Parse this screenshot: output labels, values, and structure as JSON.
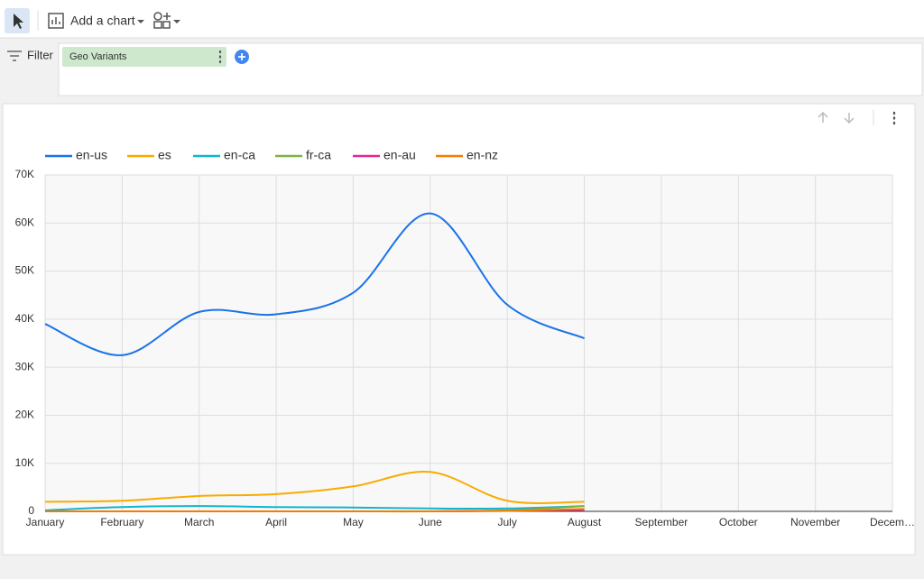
{
  "toolbar": {
    "add_chart": "Add a chart"
  },
  "filter_bar": {
    "label": "Filter",
    "chip": "Geo Variants"
  },
  "chart_data": {
    "type": "line",
    "categories": [
      "January",
      "February",
      "March",
      "April",
      "May",
      "June",
      "July",
      "August",
      "September",
      "October",
      "November",
      "Decem…"
    ],
    "series": [
      {
        "name": "en-us",
        "color": "#1a73e8",
        "values": [
          39000,
          32500,
          41500,
          41000,
          45500,
          62000,
          43000,
          36000,
          null,
          null,
          null,
          null
        ]
      },
      {
        "name": "es",
        "color": "#f9ab00",
        "values": [
          2000,
          2200,
          3200,
          3600,
          5200,
          8200,
          2200,
          2000,
          null,
          null,
          null,
          null
        ]
      },
      {
        "name": "en-ca",
        "color": "#12b5cb",
        "values": [
          200,
          900,
          1100,
          900,
          800,
          600,
          600,
          1100,
          null,
          null,
          null,
          null
        ]
      },
      {
        "name": "fr-ca",
        "color": "#7cb342",
        "values": [
          0,
          0,
          0,
          0,
          0,
          0,
          200,
          1100,
          null,
          null,
          null,
          null
        ]
      },
      {
        "name": "en-au",
        "color": "#e52592",
        "values": [
          0,
          0,
          0,
          0,
          0,
          0,
          100,
          300,
          null,
          null,
          null,
          null
        ]
      },
      {
        "name": "en-nz",
        "color": "#f57c00",
        "values": [
          0,
          0,
          0,
          0,
          0,
          0,
          100,
          500,
          null,
          null,
          null,
          null
        ]
      }
    ],
    "ylim": [
      0,
      70000
    ],
    "yticks": [
      0,
      {
        "value": 10000,
        "label": "10K"
      },
      {
        "value": 20000,
        "label": "20K"
      },
      {
        "value": 30000,
        "label": "30K"
      },
      {
        "value": 40000,
        "label": "40K"
      },
      {
        "value": 50000,
        "label": "50K"
      },
      {
        "value": 60000,
        "label": "60K"
      },
      {
        "value": 70000,
        "label": "70K"
      }
    ],
    "grid": true,
    "legend": "top"
  }
}
